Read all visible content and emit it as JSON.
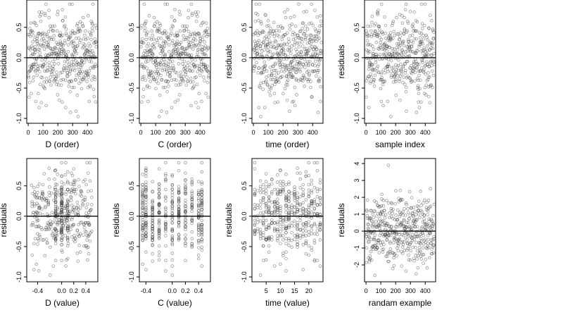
{
  "chart_data": [
    {
      "type": "scatter",
      "title": "",
      "xlabel": "D (order)",
      "ylabel": "residuals",
      "xlim": [
        -10,
        470
      ],
      "ylim": [
        -1.08,
        0.95
      ],
      "xticks": [
        0,
        100,
        200,
        300,
        400
      ],
      "xtick_labels": [
        "0",
        "100",
        "200",
        "300",
        "400"
      ],
      "yticks": [
        -1.0,
        -0.5,
        0.0,
        0.5
      ],
      "ytick_labels": [
        "-1.0",
        "-0.5",
        "0.0",
        "0.5"
      ],
      "reference_line": 0,
      "grid": false,
      "x": [],
      "y": []
    },
    {
      "type": "scatter",
      "title": "",
      "xlabel": "C (order)",
      "ylabel": "residuals",
      "xlim": [
        -10,
        470
      ],
      "ylim": [
        -1.08,
        0.95
      ],
      "xticks": [
        0,
        100,
        200,
        300,
        400
      ],
      "xtick_labels": [
        "0",
        "100",
        "200",
        "300",
        "400"
      ],
      "yticks": [
        -1.0,
        -0.5,
        0.0,
        0.5
      ],
      "ytick_labels": [
        "-1.0",
        "-0.5",
        "0.0",
        "0.5"
      ],
      "reference_line": 0,
      "grid": false,
      "x": [],
      "y": []
    },
    {
      "type": "scatter",
      "title": "",
      "xlabel": "time (order)",
      "ylabel": "residuals",
      "xlim": [
        -10,
        470
      ],
      "ylim": [
        -1.08,
        0.95
      ],
      "xticks": [
        0,
        100,
        200,
        300,
        400
      ],
      "xtick_labels": [
        "0",
        "100",
        "200",
        "300",
        "400"
      ],
      "yticks": [
        -1.0,
        -0.5,
        0.0,
        0.5
      ],
      "ytick_labels": [
        "-1.0",
        "-0.5",
        "0.0",
        "0.5"
      ],
      "reference_line": 0,
      "grid": false,
      "x": [],
      "y": []
    },
    {
      "type": "scatter",
      "title": "",
      "xlabel": "sample index",
      "ylabel": "residuals",
      "xlim": [
        -10,
        470
      ],
      "ylim": [
        -1.08,
        0.95
      ],
      "xticks": [
        0,
        100,
        200,
        300,
        400
      ],
      "xtick_labels": [
        "0",
        "100",
        "200",
        "300",
        "400"
      ],
      "yticks": [
        -1.0,
        -0.5,
        0.0,
        0.5
      ],
      "ytick_labels": [
        "-1.0",
        "-0.5",
        "0.0",
        "0.5"
      ],
      "reference_line": 0,
      "grid": false,
      "x": [],
      "y": []
    },
    {
      "type": "scatter",
      "title": "",
      "xlabel": "D (value)",
      "ylabel": "residuals",
      "xlim": [
        -0.58,
        0.6
      ],
      "ylim": [
        -1.08,
        0.95
      ],
      "xticks": [
        -0.4,
        0.0,
        0.2,
        0.4
      ],
      "xtick_labels": [
        "-0.4",
        "0.0",
        "0.2",
        "0.4"
      ],
      "yticks": [
        -1.0,
        -0.5,
        0.0,
        0.5
      ],
      "ytick_labels": [
        "-1.0",
        "-0.5",
        "0.0",
        "0.5"
      ],
      "reference_line": 0,
      "grid": false,
      "x": [],
      "y": []
    },
    {
      "type": "scatter",
      "title": "",
      "xlabel": "C (value)",
      "ylabel": "residuals",
      "xlim": [
        -0.5,
        0.58
      ],
      "ylim": [
        -1.08,
        0.95
      ],
      "xticks": [
        -0.4,
        0.0,
        0.2,
        0.4
      ],
      "xtick_labels": [
        "-0.4",
        "0.0",
        "0.2",
        "0.4"
      ],
      "yticks": [
        -1.0,
        -0.5,
        0.0,
        0.5
      ],
      "ytick_labels": [
        "-1.0",
        "-0.5",
        "0.0",
        "0.5"
      ],
      "reference_line": 0,
      "grid": false,
      "x": [],
      "y": []
    },
    {
      "type": "scatter",
      "title": "",
      "xlabel": "time (value)",
      "ylabel": "residuals",
      "xlim": [
        0,
        25
      ],
      "ylim": [
        -1.08,
        0.95
      ],
      "xticks": [
        5,
        10,
        15,
        20
      ],
      "xtick_labels": [
        "5",
        "10",
        "15",
        "20"
      ],
      "yticks": [
        -1.0,
        -0.5,
        0.0,
        0.5
      ],
      "ytick_labels": [
        "-1.0",
        "-0.5",
        "0.0",
        "0.5"
      ],
      "reference_line": 0,
      "grid": false,
      "x": [],
      "y": []
    },
    {
      "type": "scatter",
      "title": "",
      "xlabel": "randam example",
      "ylabel": "residuals",
      "xlim": [
        -10,
        470
      ],
      "ylim": [
        -3.0,
        4.3
      ],
      "xticks": [
        0,
        100,
        200,
        300,
        400
      ],
      "xtick_labels": [
        "0",
        "100",
        "200",
        "300",
        "400"
      ],
      "yticks": [
        -2,
        -1,
        0,
        1,
        2,
        3,
        4
      ],
      "ytick_labels": [
        "-2",
        "-1",
        "0",
        "1",
        "2",
        "3",
        "4"
      ],
      "reference_line": 0,
      "grid": false,
      "x": [],
      "y": []
    }
  ]
}
